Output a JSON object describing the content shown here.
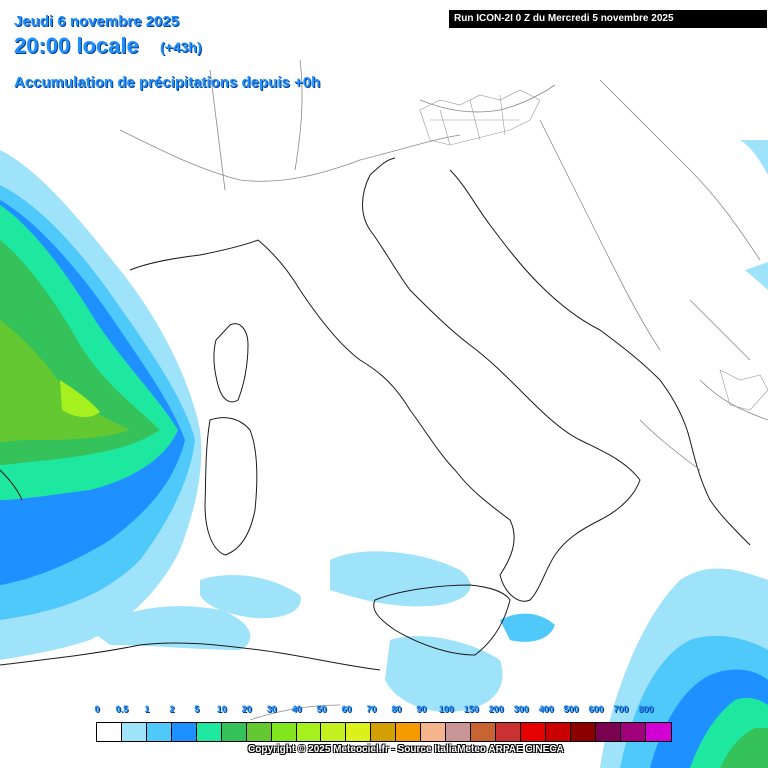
{
  "header": {
    "date": "Jeudi 6 novembre 2025",
    "time": "20:00 locale",
    "offset": "(+43h)",
    "variable": "Accumulation de précipitations depuis +0h"
  },
  "run_info": "Run ICON-2I 0 Z du Mercredi 5 novembre 2025",
  "legend": {
    "labels": [
      "0",
      "0.5",
      "1",
      "2",
      "5",
      "10",
      "20",
      "30",
      "40",
      "50",
      "60",
      "70",
      "80",
      "90",
      "100",
      "150",
      "200",
      "300",
      "400",
      "500",
      "600",
      "700",
      "800"
    ],
    "colors": [
      "#ffffff",
      "#9fe3fb",
      "#4fc8fa",
      "#1e90ff",
      "#1ee8a0",
      "#36c25a",
      "#64c832",
      "#82e61e",
      "#a5f01e",
      "#c3f01e",
      "#dcf01e",
      "#d2a000",
      "#f59a00",
      "#f5b48c",
      "#c89696",
      "#c86432",
      "#c83232",
      "#e60000",
      "#c80000",
      "#8c0000",
      "#7a0050",
      "#a0007a",
      "#d200d2"
    ]
  },
  "copyright": "Copyright © 2025 Meteociel.fr - Source ItaliaMeteo ARPAE CINECA",
  "map_colors": {
    "land_outline": "#1a1a1a",
    "border": "#8a8a8a",
    "sea": "#ffffff"
  }
}
